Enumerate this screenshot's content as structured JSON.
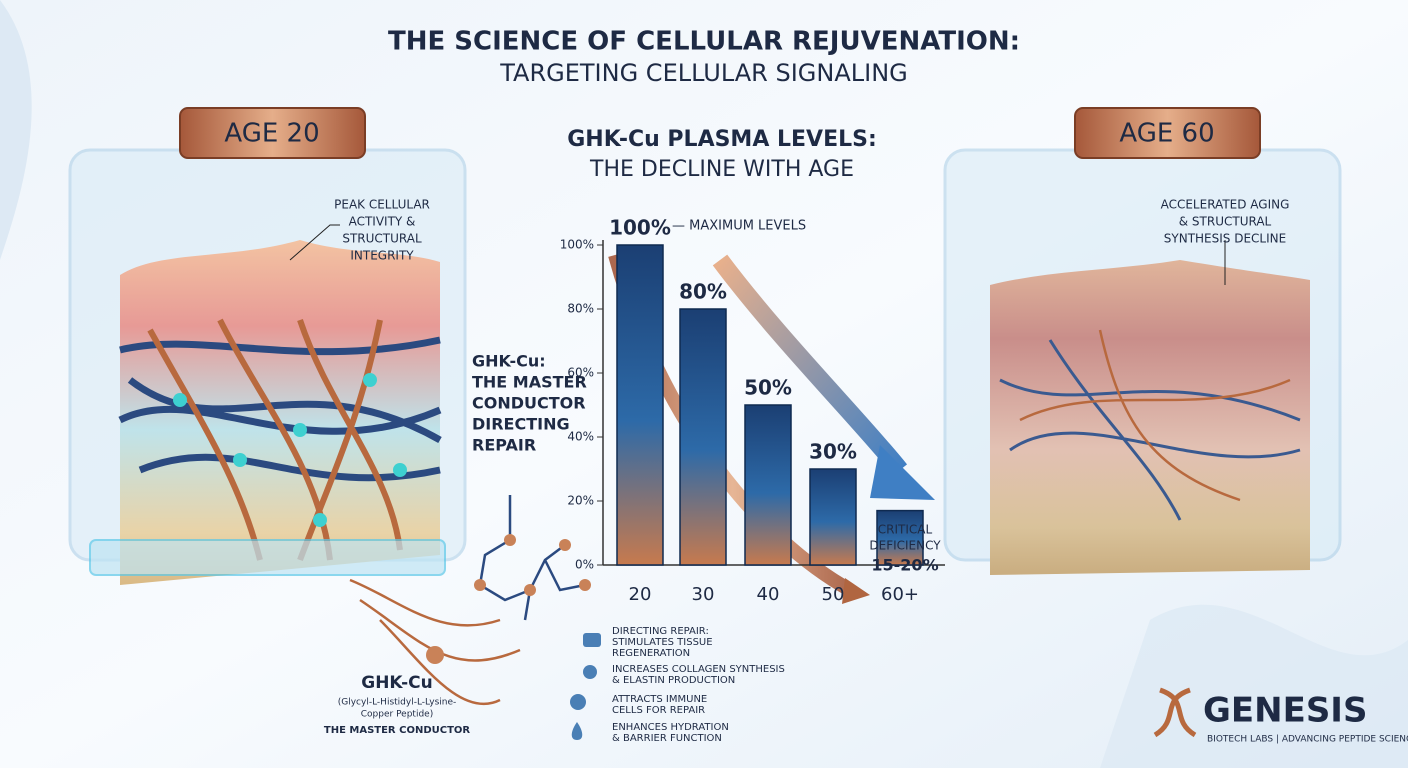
{
  "header": {
    "title": "THE SCIENCE OF CELLULAR REJUVENATION:",
    "subtitle": "TARGETING CELLULAR SIGNALING"
  },
  "panels": [
    {
      "label": "AGE 20",
      "note": [
        "PEAK CELLULAR",
        "ACTIVITY &",
        "STRUCTURAL",
        "INTEGRITY"
      ]
    },
    {
      "label": "AGE 60",
      "note": [
        "ACCELERATED AGING",
        "& STRUCTURAL",
        "SYNTHESIS DECLINE"
      ]
    }
  ],
  "chart_data": {
    "type": "bar",
    "title": "GHK-Cu PLASMA LEVELS:",
    "subtitle": "THE DECLINE WITH AGE",
    "categories": [
      "20",
      "30",
      "40",
      "50",
      "60+"
    ],
    "values": [
      100,
      80,
      50,
      30,
      17
    ],
    "value_labels": [
      "100%",
      "80%",
      "50%",
      "30%",
      null
    ],
    "ylim": [
      0,
      100
    ],
    "yticks": [
      {
        "value": 0,
        "label": "0%"
      },
      {
        "value": 20,
        "label": "20%"
      },
      {
        "value": 40,
        "label": "40%"
      },
      {
        "value": 60,
        "label": "60%"
      },
      {
        "value": 80,
        "label": "80%"
      },
      {
        "value": 100,
        "label": "100%"
      }
    ],
    "annotations": [
      "— MAXIMUM LEVELS",
      "CRITICAL",
      "DEFICIENCY",
      "15-20%"
    ]
  },
  "conductor": [
    "GHK-Cu:",
    "THE MASTER",
    "CONDUCTOR",
    "DIRECTING",
    "REPAIR"
  ],
  "molecule": {
    "name": "GHK-Cu",
    "full": [
      "(Glycyl-L-Histidyl-L-Lysine-",
      "Copper Peptide)"
    ],
    "role": "THE MASTER CONDUCTOR"
  },
  "benefits": [
    [
      "DIRECTING REPAIR:",
      "STIMULATES TISSUE",
      "REGENERATION"
    ],
    [
      "INCREASES COLLAGEN SYNTHESIS",
      "& ELASTIN PRODUCTION"
    ],
    [
      "ATTRACTS IMMUNE",
      "CELLS FOR REPAIR"
    ],
    [
      "ENHANCES HYDRATION",
      "& BARRIER FUNCTION"
    ]
  ],
  "logo": {
    "name": "GENESIS",
    "tagline": "BIOTECH LABS | ADVANCING PEPTIDE SCIENCE"
  }
}
